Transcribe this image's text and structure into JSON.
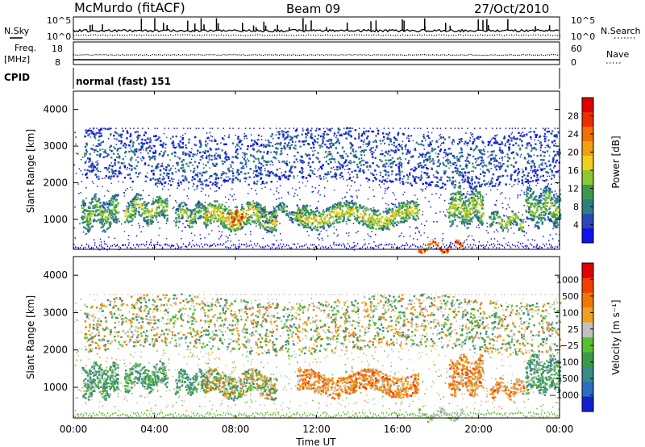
{
  "header": {
    "station": "McMurdo (fitACF)",
    "beam": "Beam 09",
    "date": "27/Oct/2010"
  },
  "summary_panels": {
    "noise_left_label": "N.Sky",
    "noise_right_label": "N.Search",
    "noise_ticks": [
      "10^5",
      "10^0"
    ],
    "freq_label_1": "Freq.",
    "freq_label_2": "[MHz]",
    "freq_ticks": [
      "18",
      "8"
    ],
    "nave_label": "Nave",
    "nave_ticks": [
      "60",
      "0"
    ],
    "cpid_label": "CPID",
    "cpid_value": "normal (fast) 151"
  },
  "chart_data": [
    {
      "type": "heatmap",
      "panel": "power",
      "ylabel": "Slant Range [km]",
      "ylim": [
        180,
        4500
      ],
      "yticks": [
        "1000",
        "2000",
        "3000",
        "4000"
      ],
      "colorbar_label": "Power [dB]",
      "colorbar_ticks": [
        "4",
        "8",
        "12",
        "16",
        "20",
        "24",
        "28"
      ],
      "colorbar_range": [
        0,
        32
      ],
      "colors": [
        "#1010e8",
        "#2848b8",
        "#2e7f7f",
        "#3a9a50",
        "#8cc830",
        "#f0d020",
        "#f0a010",
        "#f07000",
        "#e83000",
        "#e00000"
      ],
      "features": [
        {
          "t_start": 0.4,
          "t_end": 2.2,
          "range_start": 800,
          "range_end": 1600,
          "level": 0.4
        },
        {
          "t_start": 2.5,
          "t_end": 4.6,
          "range_start": 1000,
          "range_end": 1600,
          "level": 0.45
        },
        {
          "t_start": 5.0,
          "t_end": 6.6,
          "range_start": 900,
          "range_end": 1400,
          "level": 0.4
        },
        {
          "t_start": 6.4,
          "t_end": 10.0,
          "range_start": 800,
          "range_end": 1400,
          "level": 0.55
        },
        {
          "t_start": 7.6,
          "t_end": 8.3,
          "range_start": 900,
          "range_end": 1250,
          "level": 0.9
        },
        {
          "t_start": 9.0,
          "t_end": 11.5,
          "range_start": 1050,
          "range_end": 1350,
          "level": 0.35
        },
        {
          "t_start": 11.0,
          "t_end": 17.0,
          "range_start": 850,
          "range_end": 1400,
          "level": 0.5
        },
        {
          "t_start": 17.0,
          "t_end": 19.2,
          "range_start": 200,
          "range_end": 350,
          "level": 0.95
        },
        {
          "t_start": 18.5,
          "t_end": 20.2,
          "range_start": 900,
          "range_end": 1800,
          "level": 0.45
        },
        {
          "t_start": 20.5,
          "t_end": 22.2,
          "range_start": 800,
          "range_end": 1150,
          "level": 0.45
        },
        {
          "t_start": 22.3,
          "t_end": 24.0,
          "range_start": 900,
          "range_end": 1800,
          "level": 0.4
        },
        {
          "t_start": 0.5,
          "t_end": 24.0,
          "range_start": 2000,
          "range_end": 3400,
          "level": 0.2
        }
      ]
    },
    {
      "type": "heatmap",
      "panel": "velocity",
      "ylabel": "Slant Range [km]",
      "ylim": [
        180,
        4500
      ],
      "yticks": [
        "1000",
        "2000",
        "3000",
        "4000"
      ],
      "colorbar_label": "Velocity [m s⁻¹]",
      "colorbar_ticks": [
        "1000",
        "500",
        "100",
        "25",
        "−25",
        "−100",
        "−500",
        "−1000"
      ],
      "colors": [
        "#1020d0",
        "#2a6ec0",
        "#3a8a8a",
        "#3a9a4a",
        "#58c030",
        "#c0c0c0",
        "#f0a020",
        "#f07800",
        "#f04000",
        "#e00000"
      ],
      "features": [
        {
          "t_start": 0.4,
          "t_end": 2.2,
          "range_start": 800,
          "range_end": 1600,
          "sign": "positive"
        },
        {
          "t_start": 2.5,
          "t_end": 4.6,
          "range_start": 1000,
          "range_end": 1600,
          "sign": "positive"
        },
        {
          "t_start": 5.0,
          "t_end": 6.6,
          "range_start": 900,
          "range_end": 1400,
          "sign": "positive"
        },
        {
          "t_start": 6.4,
          "t_end": 10.0,
          "range_start": 800,
          "range_end": 1400,
          "sign": "mixed"
        },
        {
          "t_start": 11.0,
          "t_end": 17.0,
          "range_start": 850,
          "range_end": 1400,
          "sign": "negative"
        },
        {
          "t_start": 17.0,
          "t_end": 19.2,
          "range_start": 200,
          "range_end": 350,
          "sign": "near-zero"
        },
        {
          "t_start": 18.5,
          "t_end": 20.2,
          "range_start": 900,
          "range_end": 1800,
          "sign": "negative"
        },
        {
          "t_start": 20.5,
          "t_end": 22.2,
          "range_start": 800,
          "range_end": 1150,
          "sign": "negative"
        },
        {
          "t_start": 22.3,
          "t_end": 24.0,
          "range_start": 900,
          "range_end": 1800,
          "sign": "positive"
        },
        {
          "t_start": 0.5,
          "t_end": 24.0,
          "range_start": 2000,
          "range_end": 3400,
          "sign": "mixed"
        }
      ]
    }
  ],
  "xaxis": {
    "label": "Time UT",
    "ticks": [
      "00:00",
      "04:00",
      "08:00",
      "12:00",
      "16:00",
      "20:00",
      "00:00"
    ],
    "range_hours": [
      0,
      24
    ]
  }
}
